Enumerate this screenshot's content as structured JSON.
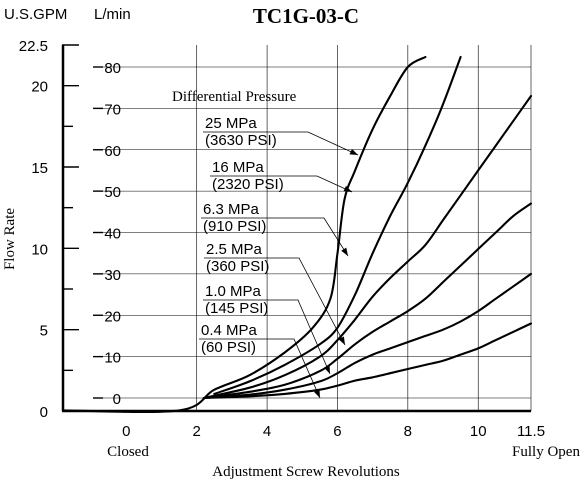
{
  "chart_data": {
    "type": "line",
    "title": "TC1G-03-C",
    "unit_left": "U.S.GPM",
    "unit_right": "L/min",
    "ylabel": "Flow Rate",
    "xlabel": "Adjustment Screw Revolutions",
    "x_label_closed": "Closed",
    "x_label_open": "Fully Open",
    "legend_heading": "Differential Pressure",
    "xlim": [
      -1.8,
      11.5
    ],
    "x_ticks": [
      "0",
      "2",
      "4",
      "6",
      "8",
      "10",
      "11.5"
    ],
    "x_tick_values": [
      0,
      2,
      4,
      6,
      8,
      10,
      11.5
    ],
    "ylim_lmin": [
      -3,
      85
    ],
    "gpm_ticks": [
      "0",
      "5",
      "10",
      "15",
      "20",
      "22.5"
    ],
    "gpm_tick_values": [
      0,
      5,
      10,
      15,
      20,
      22.5
    ],
    "lmin_ticks": [
      "0",
      "10",
      "20",
      "30",
      "40",
      "50",
      "60",
      "70",
      "80"
    ],
    "lmin_tick_values": [
      0,
      10,
      20,
      30,
      40,
      50,
      60,
      70,
      80
    ],
    "grid": true,
    "series": [
      {
        "name": "25 MPa",
        "name_psi": "(3630 PSI)",
        "x": [
          -1.8,
          1.5,
          2.5,
          3.5,
          4.5,
          5.3,
          5.8,
          6.0,
          6.2,
          6.5,
          7.0,
          7.5,
          8.0,
          8.5
        ],
        "y": [
          -3,
          -3,
          2,
          5.5,
          11,
          17,
          24,
          35,
          48,
          55,
          65,
          73,
          80,
          85
        ]
      },
      {
        "name": "16 MPa",
        "name_psi": "(2320 PSI)",
        "x": [
          2.5,
          3.5,
          4.5,
          5.5,
          6.0,
          6.5,
          7.0,
          7.5,
          8.0,
          8.5,
          9.0,
          9.5
        ],
        "y": [
          1,
          4,
          8,
          13,
          17,
          25,
          35,
          44,
          52,
          61,
          71,
          85
        ]
      },
      {
        "name": "6.3 MPa",
        "name_psi": "(910 PSI)",
        "x": [
          2.2,
          3.5,
          4.5,
          5.5,
          6.0,
          6.5,
          7.0,
          7.5,
          8.0,
          8.5,
          9.0,
          9.5,
          10.0,
          10.5,
          11.0,
          11.5
        ],
        "y": [
          0,
          2.5,
          5.5,
          10,
          14,
          19,
          24.5,
          29,
          33,
          37,
          43,
          49,
          55,
          61,
          67,
          73
        ]
      },
      {
        "name": "2.5 MPa",
        "name_psi": "(360 PSI)",
        "x": [
          2.2,
          3.5,
          4.5,
          5.5,
          6.0,
          6.5,
          7.0,
          7.5,
          8.0,
          8.5,
          9.0,
          9.5,
          10.0,
          10.5,
          11.0,
          11.5
        ],
        "y": [
          0,
          1.5,
          3.2,
          6.5,
          9.5,
          13,
          16,
          18.5,
          21,
          24,
          28,
          32,
          36,
          40,
          44,
          47
        ]
      },
      {
        "name": "1.0 MPa",
        "name_psi": "(145 PSI)",
        "x": [
          2.2,
          3.5,
          4.5,
          5.5,
          6.0,
          6.5,
          7.0,
          7.5,
          8.0,
          8.5,
          9.0,
          9.5,
          10.0,
          10.5,
          11.0,
          11.5
        ],
        "y": [
          0,
          0.8,
          2,
          4,
          6,
          8.5,
          10.5,
          12,
          13.5,
          15,
          16.5,
          18.5,
          21,
          24,
          27,
          30
        ]
      },
      {
        "name": "0.4 MPa",
        "name_psi": "(60 PSI)",
        "x": [
          2.2,
          3.5,
          4.5,
          5.5,
          6.0,
          6.5,
          7.0,
          7.5,
          8.0,
          8.5,
          9.0,
          9.5,
          10.0,
          10.5,
          11.0,
          11.5
        ],
        "y": [
          0,
          0.4,
          1,
          2,
          3,
          4.2,
          5,
          6,
          7,
          8,
          9,
          10.5,
          12,
          14,
          16,
          18
        ]
      }
    ]
  }
}
